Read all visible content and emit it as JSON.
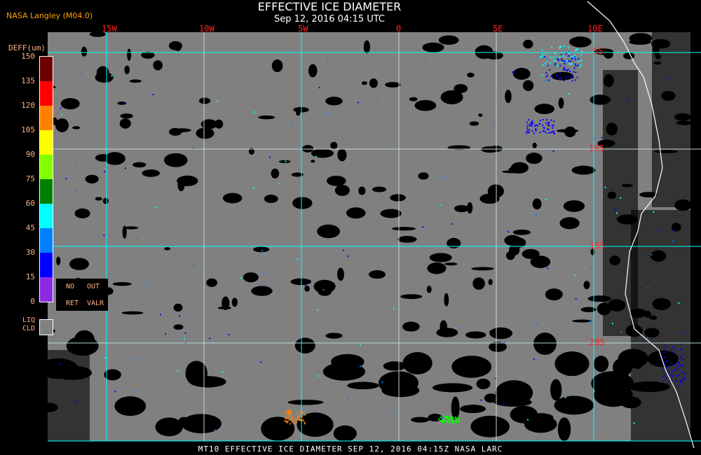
{
  "header": {
    "title": "EFFECTIVE ICE DIAMETER",
    "subtitle": "Sep 12, 2016 04:15 UTC",
    "org": "NASA Langley (M04.0)"
  },
  "map": {
    "longitude_labels": [
      "15W",
      "10W",
      "5W",
      "0",
      "5E",
      "10E"
    ],
    "latitude_labels": [
      "5S",
      "10S",
      "15S",
      "20S"
    ],
    "colors": {
      "liquid_cloud": "#808080",
      "clear": "#000000",
      "grid": "#00ffff",
      "coast": "#ffffff"
    }
  },
  "legend": {
    "unit": "DEFF(um)",
    "ticks": [
      "150",
      "135",
      "120",
      "105",
      "90",
      "75",
      "60",
      "45",
      "30",
      "15",
      "0"
    ],
    "colors": [
      "#6a0000",
      "#ff0000",
      "#ff8000",
      "#ffff00",
      "#80ff00",
      "#008000",
      "#00ffff",
      "#0080ff",
      "#0000ff",
      "#8a2be2"
    ],
    "no_ret": [
      "NO",
      "RET"
    ],
    "out_valr": [
      "OUT",
      "VALR"
    ],
    "liq_cld": [
      "LIQ",
      "CLD"
    ]
  },
  "footer": "MT10  EFFECTIVE ICE DIAMETER   SEP 12, 2016 04:15Z   NASA LARC"
}
